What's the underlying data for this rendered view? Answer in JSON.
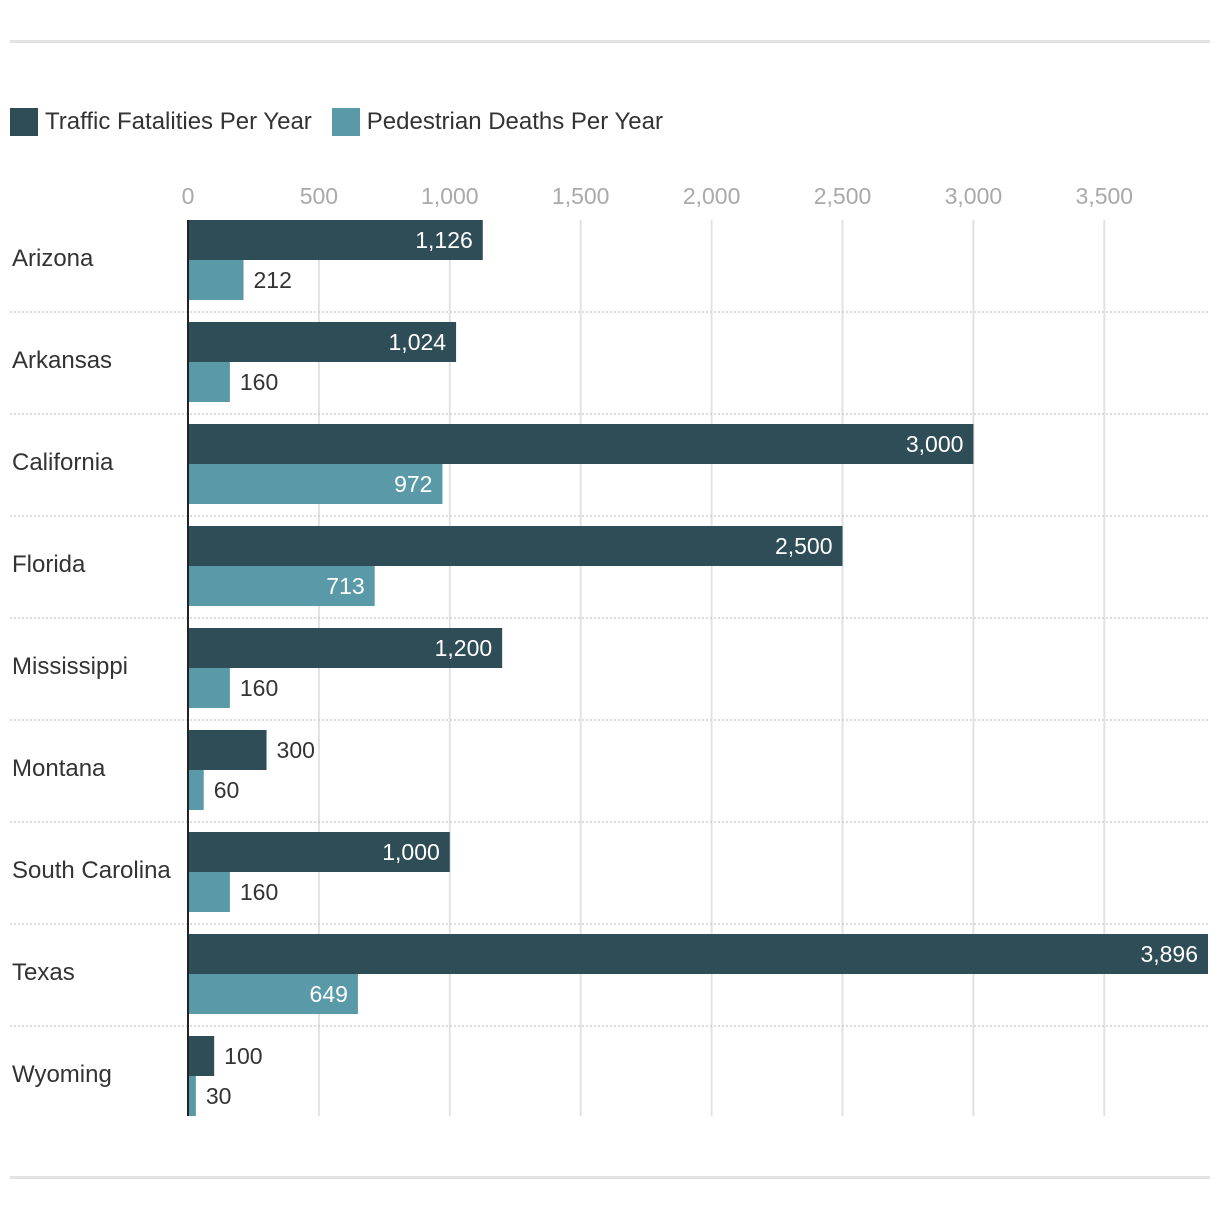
{
  "chart_data": {
    "type": "bar",
    "orientation": "horizontal",
    "categories": [
      "Arizona",
      "Arkansas",
      "California",
      "Florida",
      "Mississippi",
      "Montana",
      "South Carolina",
      "Texas",
      "Wyoming"
    ],
    "series": [
      {
        "name": "Traffic Fatalities Per Year",
        "color": "#2f4d56",
        "values": [
          1126,
          1024,
          3000,
          2500,
          1200,
          300,
          1000,
          3896,
          100
        ]
      },
      {
        "name": "Pedestrian Deaths Per Year",
        "color": "#5a9aa8",
        "values": [
          212,
          160,
          972,
          713,
          160,
          60,
          160,
          649,
          30
        ]
      }
    ],
    "x_ticks": [
      0,
      500,
      1000,
      1500,
      2000,
      2500,
      3000,
      3500
    ],
    "x_tick_labels": [
      "0",
      "500",
      "1,000",
      "1,500",
      "2,000",
      "2,500",
      "3,000",
      "3,500"
    ],
    "xlim": [
      0,
      3896
    ],
    "grid": true,
    "legend_position": "top-left",
    "data_labels": true
  }
}
